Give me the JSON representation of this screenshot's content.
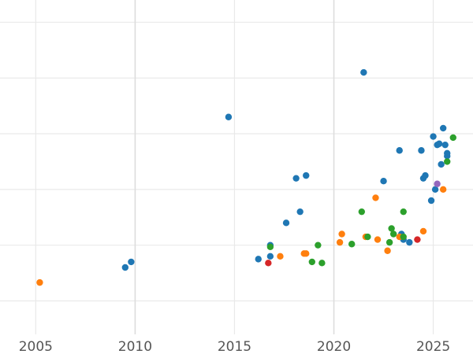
{
  "chart_data": {
    "type": "scatter",
    "title": "",
    "xlabel": "",
    "ylabel": "",
    "xlim": [
      2003.2,
      2027
    ],
    "ylim": [
      -0.6,
      5.4
    ],
    "x_ticks": [
      2005,
      2010,
      2015,
      2020,
      2025
    ],
    "x_tick_labels": [
      "2005",
      "2010",
      "2015",
      "2020",
      "2025"
    ],
    "y_gridlines": [
      0,
      1,
      2,
      3,
      4,
      5
    ],
    "y_tick_labels_visible": false,
    "grid": true,
    "legend": "none",
    "colors": {
      "blue": "#1f77b4",
      "orange": "#ff7f0e",
      "green": "#2ca02c",
      "red": "#d62728",
      "purple": "#9467bd"
    },
    "series": [
      {
        "color": "blue",
        "x": [
          2009.5,
          2009.8,
          2014.7,
          2016.2,
          2016.8,
          2016.8,
          2017.6,
          2018.1,
          2018.3,
          2018.6,
          2021.5,
          2022.5,
          2023.3,
          2023.4,
          2023.5,
          2023.8,
          2024.4,
          2024.5,
          2024.6,
          2024.9,
          2025.0,
          2025.1,
          2025.2,
          2025.3,
          2025.4,
          2025.5,
          2025.6,
          2025.7,
          2025.7
        ],
        "y": [
          0.6,
          0.7,
          3.3,
          0.75,
          0.8,
          1.0,
          1.4,
          2.2,
          1.6,
          2.25,
          4.1,
          2.15,
          2.7,
          1.2,
          1.1,
          1.05,
          2.7,
          2.2,
          2.25,
          1.8,
          2.95,
          2.0,
          2.8,
          2.82,
          2.45,
          3.1,
          2.8,
          2.65,
          2.6
        ]
      },
      {
        "color": "orange",
        "x": [
          2005.2,
          2017.3,
          2018.5,
          2018.6,
          2020.3,
          2020.4,
          2021.6,
          2022.1,
          2022.2,
          2022.7,
          2023.3,
          2024.5,
          2025.5
        ],
        "y": [
          0.33,
          0.8,
          0.85,
          0.85,
          1.05,
          1.2,
          1.15,
          1.85,
          1.1,
          0.9,
          1.15,
          1.25,
          2.0
        ]
      },
      {
        "color": "green",
        "x": [
          2016.8,
          2018.9,
          2019.2,
          2019.4,
          2020.9,
          2021.4,
          2021.7,
          2022.8,
          2022.9,
          2023.0,
          2023.5,
          2023.5,
          2025.7,
          2026.0
        ],
        "y": [
          0.97,
          0.7,
          1.0,
          0.68,
          1.02,
          1.6,
          1.15,
          1.05,
          1.3,
          1.2,
          1.15,
          1.6,
          2.5,
          2.93
        ]
      },
      {
        "color": "red",
        "x": [
          2016.7,
          2024.2
        ],
        "y": [
          0.68,
          1.1
        ]
      },
      {
        "color": "purple",
        "x": [
          2025.2
        ],
        "y": [
          2.1
        ]
      }
    ]
  }
}
